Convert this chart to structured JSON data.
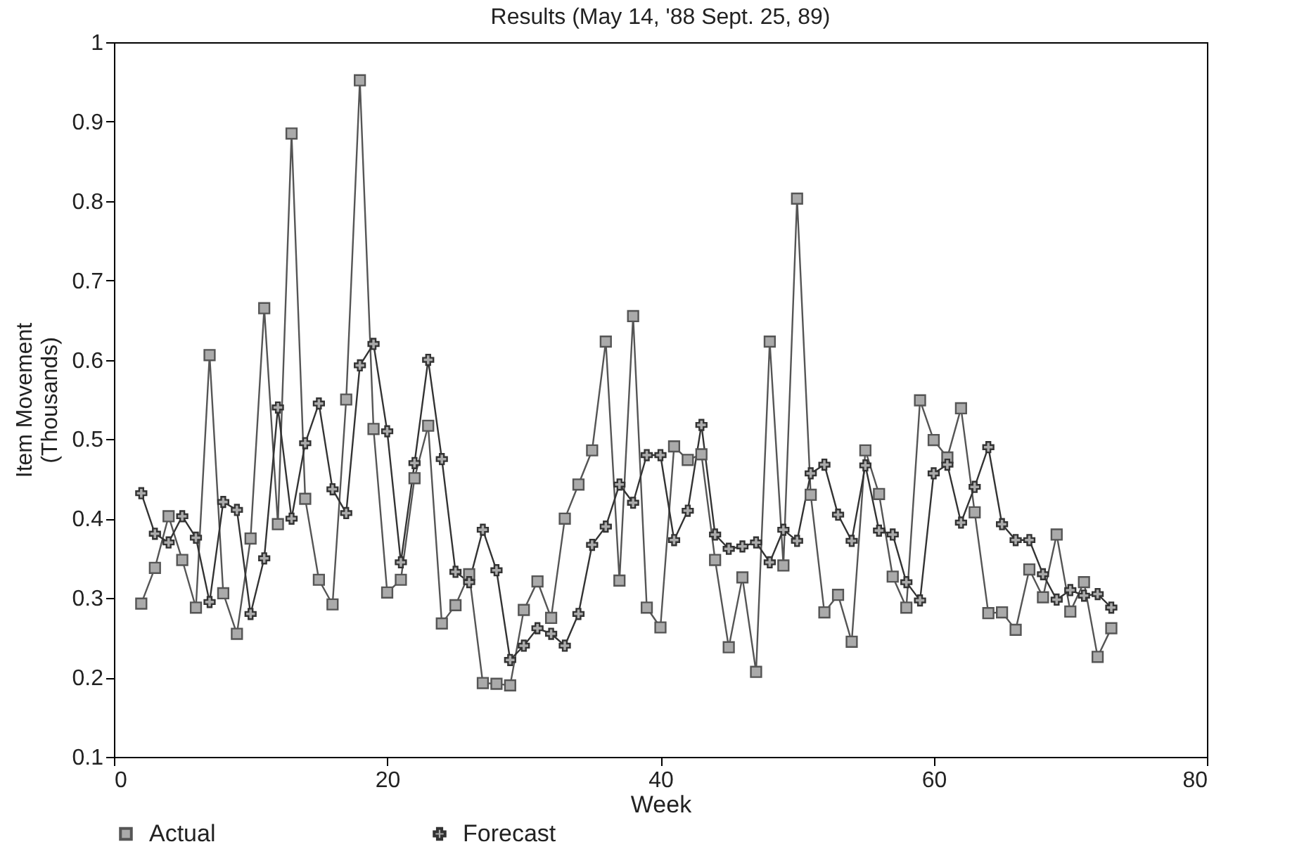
{
  "chart_data": {
    "type": "line",
    "title": "Results (May 14, '88 Sept. 25, 89)",
    "xlabel": "Week",
    "ylabel": "Item Movement (Thousands)",
    "x": [
      2,
      3,
      4,
      5,
      6,
      7,
      8,
      9,
      10,
      11,
      12,
      13,
      14,
      15,
      16,
      17,
      18,
      19,
      20,
      21,
      22,
      23,
      24,
      25,
      26,
      27,
      28,
      29,
      30,
      31,
      32,
      33,
      34,
      35,
      36,
      37,
      38,
      39,
      40,
      41,
      42,
      43,
      44,
      45,
      46,
      47,
      48,
      49,
      50,
      51,
      52,
      53,
      54,
      55,
      56,
      57,
      58,
      59,
      60,
      61,
      62,
      63,
      64,
      65,
      66,
      67,
      68,
      69,
      70,
      71,
      72,
      73
    ],
    "series": [
      {
        "name": "Actual",
        "color": "#555555",
        "marker": "square",
        "values": [
          0.293,
          0.338,
          0.403,
          0.348,
          0.288,
          0.606,
          0.306,
          0.255,
          0.375,
          0.665,
          0.393,
          0.885,
          0.425,
          0.323,
          0.292,
          0.55,
          0.952,
          0.513,
          0.307,
          0.323,
          0.451,
          0.517,
          0.268,
          0.291,
          0.33,
          0.193,
          0.192,
          0.19,
          0.285,
          0.321,
          0.275,
          0.4,
          0.443,
          0.486,
          0.623,
          0.322,
          0.655,
          0.288,
          0.263,
          0.491,
          0.474,
          0.481,
          0.348,
          0.238,
          0.326,
          0.207,
          0.623,
          0.341,
          0.803,
          0.43,
          0.282,
          0.304,
          0.245,
          0.486,
          0.431,
          0.327,
          0.288,
          0.549,
          0.499,
          0.477,
          0.539,
          0.408,
          0.281,
          0.282,
          0.26,
          0.336,
          0.301,
          0.38,
          0.283,
          0.32,
          0.226,
          0.262
        ]
      },
      {
        "name": "Forecast",
        "color": "#333333",
        "marker": "cross",
        "values": [
          0.432,
          0.381,
          0.37,
          0.403,
          0.376,
          0.295,
          0.421,
          0.411,
          0.28,
          0.35,
          0.54,
          0.4,
          0.495,
          0.545,
          0.437,
          0.407,
          0.593,
          0.62,
          0.51,
          0.345,
          0.47,
          0.6,
          0.475,
          0.333,
          0.32,
          0.386,
          0.335,
          0.222,
          0.24,
          0.262,
          0.255,
          0.24,
          0.28,
          0.367,
          0.39,
          0.443,
          0.42,
          0.48,
          0.48,
          0.373,
          0.41,
          0.518,
          0.38,
          0.362,
          0.365,
          0.37,
          0.345,
          0.386,
          0.372,
          0.457,
          0.468,
          0.405,
          0.372,
          0.467,
          0.385,
          0.38,
          0.32,
          0.297,
          0.457,
          0.468,
          0.395,
          0.44,
          0.49,
          0.393,
          0.373,
          0.373,
          0.33,
          0.298,
          0.31,
          0.303,
          0.305,
          0.288
        ]
      }
    ],
    "xlim": [
      0,
      80
    ],
    "xticks": [
      0,
      20,
      40,
      60,
      80
    ],
    "ylim": [
      0.1,
      1
    ],
    "yticks": [
      0.1,
      0.2,
      0.3,
      0.4,
      0.5,
      0.6,
      0.7,
      0.8,
      0.9,
      1
    ],
    "grid": false,
    "legend": "bottom",
    "line_style": "solid"
  }
}
